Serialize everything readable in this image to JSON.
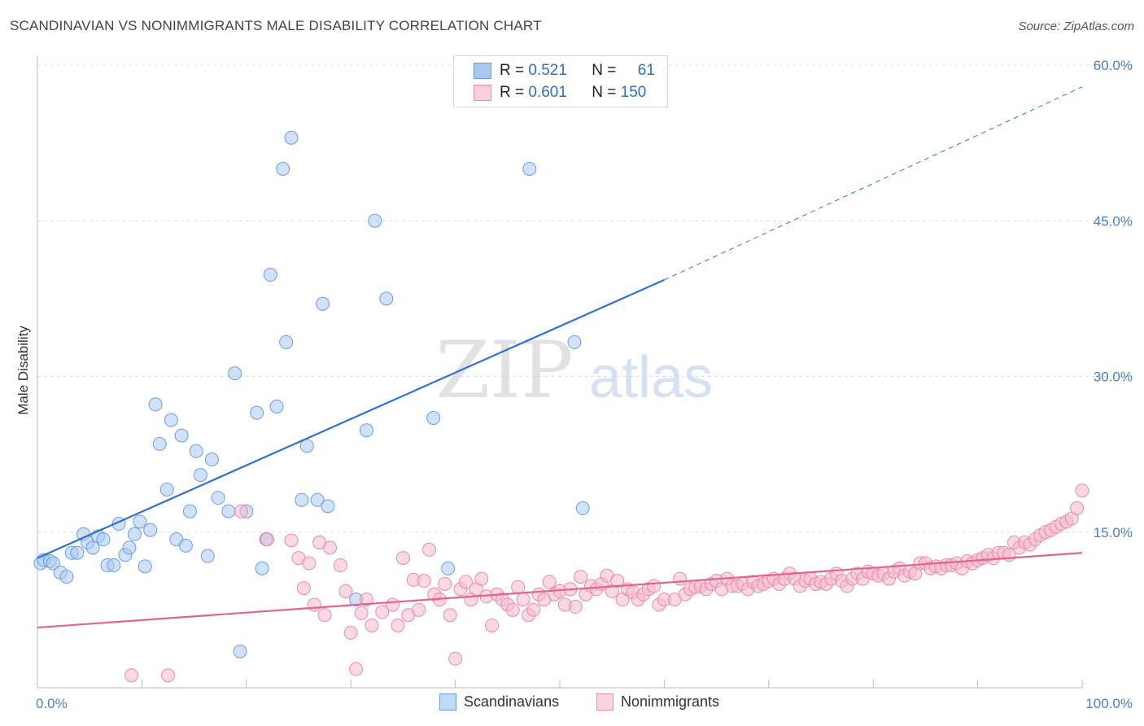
{
  "title": "SCANDINAVIAN VS NONIMMIGRANTS MALE DISABILITY CORRELATION CHART",
  "source": "Source: ZipAtlas.com",
  "watermark": {
    "zip": "ZIP",
    "atlas": "atlas"
  },
  "legend": {
    "rows": [
      {
        "r_label": "R =",
        "r_value": "0.521",
        "n_label": "N =",
        "n_value": "61",
        "color": "#a9c8f2",
        "border": "#6a9fe0"
      },
      {
        "r_label": "R =",
        "r_value": "0.601",
        "n_label": "N =",
        "n_value": "150",
        "color": "#f7b9cc",
        "border": "#e98aa8"
      }
    ]
  },
  "bottom_legend": [
    {
      "label": "Scandinavians",
      "color": "#a9c8f2",
      "border": "#6a9fe0"
    },
    {
      "label": "Nonimmigrants",
      "color": "#f7b9cc",
      "border": "#e98aa8"
    }
  ],
  "chart_data": {
    "type": "scatter",
    "title": "SCANDINAVIAN VS NONIMMIGRANTS MALE DISABILITY CORRELATION CHART",
    "xlabel": "",
    "ylabel": "Male Disability",
    "xlim": [
      0,
      100
    ],
    "ylim": [
      0,
      60
    ],
    "x_tick_labels": [
      "0.0%",
      "100.0%"
    ],
    "y_ticks": [
      15,
      30,
      45,
      60
    ],
    "y_tick_labels": [
      "15.0%",
      "30.0%",
      "45.0%",
      "60.0%"
    ],
    "grid": true,
    "legend_position": "top-center",
    "series": [
      {
        "name": "Scandinavians",
        "color": "#6a9fe0",
        "fill": "#a9c8f2",
        "trend": {
          "x0": 0,
          "y0": 12.5,
          "x1": 60,
          "y1": 39.3,
          "dash_to_x": 100,
          "dash_to_y": 57.9,
          "color": "#2f72d0"
        },
        "points": [
          [
            0.3,
            12.0
          ],
          [
            0.6,
            12.3
          ],
          [
            1.2,
            12.2
          ],
          [
            1.5,
            12.0
          ],
          [
            2.2,
            11.1
          ],
          [
            2.8,
            10.7
          ],
          [
            3.3,
            13.0
          ],
          [
            3.8,
            13.0
          ],
          [
            4.4,
            14.8
          ],
          [
            4.8,
            14.0
          ],
          [
            5.3,
            13.5
          ],
          [
            5.8,
            14.6
          ],
          [
            6.3,
            14.3
          ],
          [
            6.7,
            11.8
          ],
          [
            7.3,
            11.8
          ],
          [
            7.8,
            15.8
          ],
          [
            8.4,
            12.8
          ],
          [
            8.8,
            13.5
          ],
          [
            9.3,
            14.8
          ],
          [
            9.8,
            16.0
          ],
          [
            10.3,
            11.7
          ],
          [
            10.8,
            15.2
          ],
          [
            11.3,
            27.3
          ],
          [
            11.7,
            23.5
          ],
          [
            12.4,
            19.1
          ],
          [
            12.8,
            25.8
          ],
          [
            13.3,
            14.3
          ],
          [
            13.8,
            24.3
          ],
          [
            14.2,
            13.7
          ],
          [
            14.6,
            17.0
          ],
          [
            15.2,
            22.8
          ],
          [
            15.6,
            20.5
          ],
          [
            16.3,
            12.7
          ],
          [
            16.7,
            22.0
          ],
          [
            17.3,
            18.3
          ],
          [
            18.3,
            17.0
          ],
          [
            18.9,
            30.3
          ],
          [
            19.4,
            3.5
          ],
          [
            20.0,
            17.0
          ],
          [
            21.0,
            26.5
          ],
          [
            21.5,
            11.5
          ],
          [
            21.9,
            14.3
          ],
          [
            22.3,
            39.8
          ],
          [
            22.9,
            27.1
          ],
          [
            23.5,
            50.0
          ],
          [
            23.8,
            33.3
          ],
          [
            24.3,
            53.0
          ],
          [
            25.3,
            18.1
          ],
          [
            25.8,
            23.3
          ],
          [
            26.8,
            18.1
          ],
          [
            27.3,
            37.0
          ],
          [
            27.8,
            17.5
          ],
          [
            30.5,
            8.5
          ],
          [
            31.5,
            24.8
          ],
          [
            32.3,
            45.0
          ],
          [
            33.4,
            37.5
          ],
          [
            37.9,
            26.0
          ],
          [
            39.3,
            11.5
          ],
          [
            47.1,
            50.0
          ],
          [
            51.4,
            33.3
          ],
          [
            52.2,
            17.3
          ]
        ]
      },
      {
        "name": "Nonimmigrants",
        "color": "#e98aa8",
        "fill": "#f7b9cc",
        "trend": {
          "x0": 0,
          "y0": 5.8,
          "x1": 100,
          "y1": 13.0,
          "color": "#e0648c"
        },
        "points": [
          [
            9.0,
            1.2
          ],
          [
            12.5,
            1.2
          ],
          [
            19.5,
            17.0
          ],
          [
            22.0,
            14.3
          ],
          [
            24.3,
            14.2
          ],
          [
            25.0,
            12.5
          ],
          [
            25.5,
            9.6
          ],
          [
            26.0,
            12.0
          ],
          [
            26.5,
            8.0
          ],
          [
            27.0,
            14.0
          ],
          [
            27.5,
            7.0
          ],
          [
            28.0,
            13.5
          ],
          [
            29.0,
            11.8
          ],
          [
            29.5,
            9.3
          ],
          [
            30.0,
            5.3
          ],
          [
            30.5,
            1.8
          ],
          [
            31.0,
            7.2
          ],
          [
            31.5,
            8.5
          ],
          [
            32.0,
            6.0
          ],
          [
            33.0,
            7.3
          ],
          [
            34.0,
            8.0
          ],
          [
            34.5,
            6.0
          ],
          [
            35.0,
            12.5
          ],
          [
            35.5,
            7.0
          ],
          [
            36.0,
            10.4
          ],
          [
            36.5,
            7.5
          ],
          [
            37.0,
            10.3
          ],
          [
            37.5,
            13.3
          ],
          [
            38.0,
            9.0
          ],
          [
            38.5,
            8.5
          ],
          [
            39.0,
            10.0
          ],
          [
            39.5,
            7.0
          ],
          [
            40.0,
            2.8
          ],
          [
            40.5,
            9.5
          ],
          [
            41.0,
            10.2
          ],
          [
            41.5,
            8.5
          ],
          [
            42.0,
            9.5
          ],
          [
            42.5,
            10.5
          ],
          [
            43.0,
            8.8
          ],
          [
            43.5,
            6.0
          ],
          [
            44.0,
            9.0
          ],
          [
            44.5,
            8.5
          ],
          [
            45.0,
            8.0
          ],
          [
            45.5,
            7.5
          ],
          [
            46.0,
            9.7
          ],
          [
            46.5,
            8.5
          ],
          [
            47.0,
            7.0
          ],
          [
            47.5,
            7.5
          ],
          [
            48.0,
            9.0
          ],
          [
            48.5,
            8.5
          ],
          [
            49.0,
            10.2
          ],
          [
            49.5,
            9.0
          ],
          [
            50.0,
            9.3
          ],
          [
            50.5,
            8.0
          ],
          [
            51.0,
            9.5
          ],
          [
            51.5,
            7.8
          ],
          [
            52.0,
            10.7
          ],
          [
            52.5,
            9.0
          ],
          [
            53.0,
            9.8
          ],
          [
            53.5,
            9.5
          ],
          [
            54.0,
            10.0
          ],
          [
            54.5,
            10.8
          ],
          [
            55.0,
            9.3
          ],
          [
            55.5,
            10.3
          ],
          [
            56.0,
            8.5
          ],
          [
            56.5,
            9.5
          ],
          [
            57.0,
            9.2
          ],
          [
            57.5,
            8.5
          ],
          [
            58.0,
            9.0
          ],
          [
            58.5,
            9.5
          ],
          [
            59.0,
            9.8
          ],
          [
            59.5,
            8.0
          ],
          [
            60.0,
            8.5
          ],
          [
            61.0,
            8.5
          ],
          [
            61.5,
            10.5
          ],
          [
            62.0,
            9.0
          ],
          [
            62.5,
            9.5
          ],
          [
            63.0,
            9.7
          ],
          [
            63.5,
            9.8
          ],
          [
            64.0,
            9.5
          ],
          [
            64.5,
            10.0
          ],
          [
            65.0,
            10.3
          ],
          [
            65.5,
            9.5
          ],
          [
            66.0,
            10.5
          ],
          [
            66.5,
            9.8
          ],
          [
            67.0,
            9.8
          ],
          [
            67.5,
            10.0
          ],
          [
            68.0,
            9.5
          ],
          [
            68.5,
            10.2
          ],
          [
            69.0,
            9.8
          ],
          [
            69.5,
            10.0
          ],
          [
            70.0,
            10.3
          ],
          [
            70.5,
            10.5
          ],
          [
            71.0,
            10.0
          ],
          [
            71.5,
            10.5
          ],
          [
            72.0,
            11.0
          ],
          [
            72.5,
            10.5
          ],
          [
            73.0,
            9.8
          ],
          [
            73.5,
            10.3
          ],
          [
            74.0,
            10.5
          ],
          [
            74.5,
            10.0
          ],
          [
            75.0,
            10.2
          ],
          [
            75.5,
            10.0
          ],
          [
            76.0,
            10.5
          ],
          [
            76.5,
            11.0
          ],
          [
            77.0,
            10.3
          ],
          [
            77.5,
            9.8
          ],
          [
            78.0,
            10.5
          ],
          [
            78.5,
            11.0
          ],
          [
            79.0,
            10.5
          ],
          [
            79.5,
            11.2
          ],
          [
            80.0,
            11.0
          ],
          [
            80.5,
            10.8
          ],
          [
            81.0,
            11.0
          ],
          [
            81.5,
            10.5
          ],
          [
            82.0,
            11.2
          ],
          [
            82.5,
            11.5
          ],
          [
            83.0,
            10.8
          ],
          [
            83.5,
            11.2
          ],
          [
            84.0,
            11.0
          ],
          [
            84.5,
            12.0
          ],
          [
            85.0,
            12.0
          ],
          [
            85.5,
            11.5
          ],
          [
            86.0,
            11.7
          ],
          [
            86.5,
            11.5
          ],
          [
            87.0,
            11.8
          ],
          [
            87.5,
            11.8
          ],
          [
            88.0,
            12.0
          ],
          [
            88.5,
            11.5
          ],
          [
            89.0,
            12.2
          ],
          [
            89.5,
            12.0
          ],
          [
            90.0,
            12.3
          ],
          [
            90.5,
            12.5
          ],
          [
            91.0,
            12.8
          ],
          [
            91.5,
            12.5
          ],
          [
            92.0,
            13.0
          ],
          [
            92.5,
            13.0
          ],
          [
            93.0,
            12.8
          ],
          [
            93.5,
            14.0
          ],
          [
            94.0,
            13.5
          ],
          [
            94.5,
            14.0
          ],
          [
            95.0,
            13.8
          ],
          [
            95.5,
            14.3
          ],
          [
            96.0,
            14.7
          ],
          [
            96.5,
            15.0
          ],
          [
            97.0,
            15.2
          ],
          [
            97.5,
            15.5
          ],
          [
            98.0,
            15.8
          ],
          [
            98.5,
            16.0
          ],
          [
            99.0,
            16.3
          ],
          [
            99.5,
            17.3
          ],
          [
            100.0,
            19.0
          ]
        ]
      }
    ]
  }
}
